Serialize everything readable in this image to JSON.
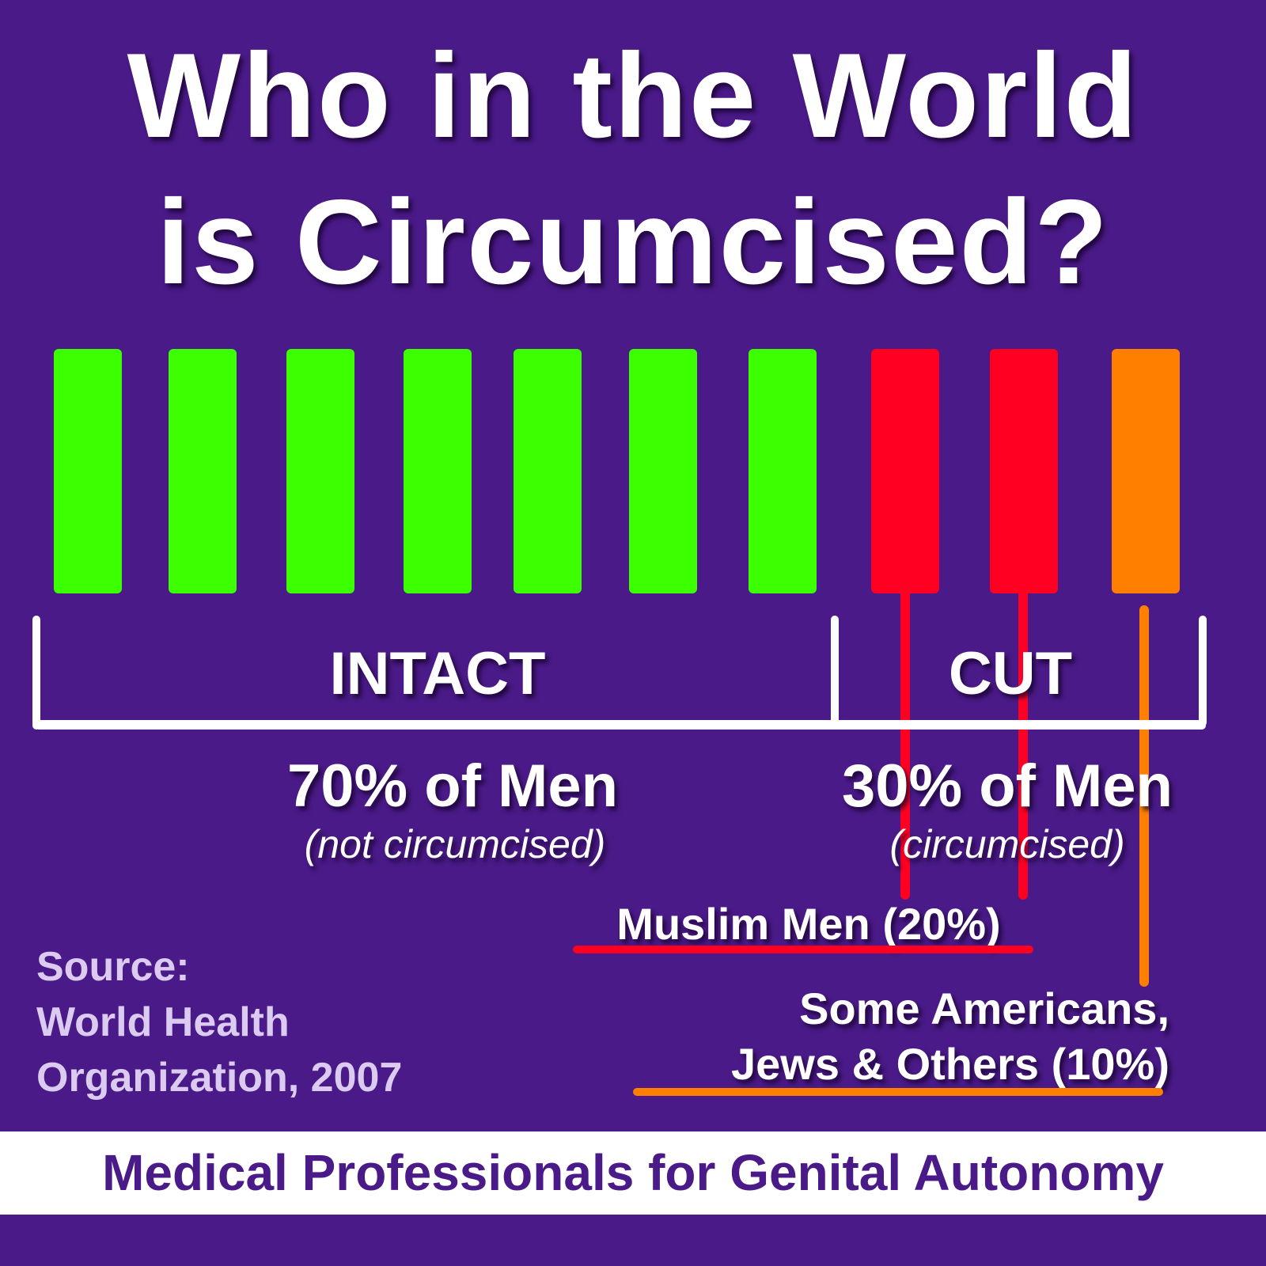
{
  "title": {
    "line1": "Who in the World",
    "line2": "is Circumcised?"
  },
  "bars": [
    {
      "group": "intact",
      "color": "#3cff00"
    },
    {
      "group": "intact",
      "color": "#3cff00"
    },
    {
      "group": "intact",
      "color": "#3cff00"
    },
    {
      "group": "intact",
      "color": "#3cff00"
    },
    {
      "group": "intact",
      "color": "#3cff00"
    },
    {
      "group": "intact",
      "color": "#3cff00"
    },
    {
      "group": "intact",
      "color": "#3cff00"
    },
    {
      "group": "muslim",
      "color": "#ff0022"
    },
    {
      "group": "muslim",
      "color": "#ff0022"
    },
    {
      "group": "others",
      "color": "#ff7f00"
    }
  ],
  "groups": {
    "intact": {
      "label": "INTACT",
      "percent": "70% of Men",
      "note": "(not circumcised)"
    },
    "cut": {
      "label": "CUT",
      "percent": "30% of Men",
      "note": "(circumcised)"
    }
  },
  "breakdown": {
    "muslim": {
      "label": "Muslim Men (20%)",
      "color": "#ff0022"
    },
    "others": {
      "line1": "Some Americans,",
      "line2": "Jews & Others (10%)",
      "color": "#ff7f00"
    }
  },
  "source": {
    "line1": "Source:",
    "line2": "World Health",
    "line3": "Organization, 2007"
  },
  "footer": "Medical Professionals for Genital Autonomy",
  "colors": {
    "background": "#4a1a88",
    "intact": "#3cff00",
    "muslim": "#ff0022",
    "others": "#ff7f00"
  }
}
